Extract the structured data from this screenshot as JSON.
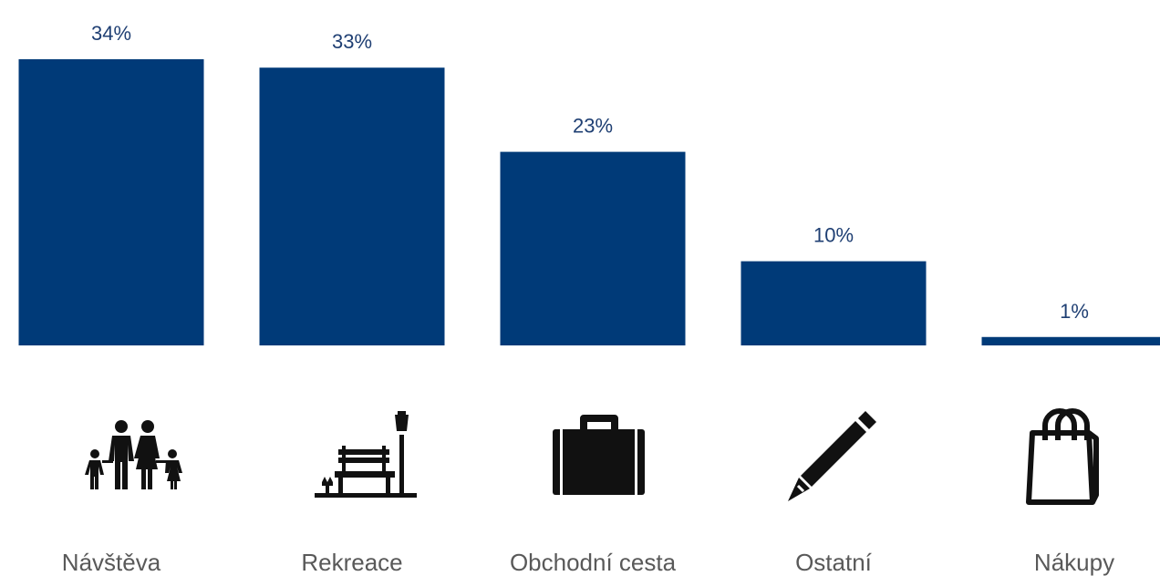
{
  "colors": {
    "bar": "#003a78",
    "value_label": "#1f3f73",
    "category_label": "#595959",
    "icon": "#111111"
  },
  "chart_data": {
    "type": "bar",
    "categories": [
      "Návštěva",
      "Rekreace",
      "Obchodní cesta",
      "Ostatní",
      "Nákupy"
    ],
    "values": [
      34,
      33,
      23,
      10,
      1
    ],
    "value_labels": [
      "34%",
      "33%",
      "23%",
      "10%",
      "1%"
    ],
    "icons": [
      "family-icon",
      "park-bench-icon",
      "briefcase-icon",
      "pencil-icon",
      "shopping-bag-icon"
    ],
    "unit": "%",
    "title": "",
    "xlabel": "",
    "ylabel": "",
    "ylim": [
      0,
      34
    ],
    "grid": false,
    "legend": "none"
  }
}
